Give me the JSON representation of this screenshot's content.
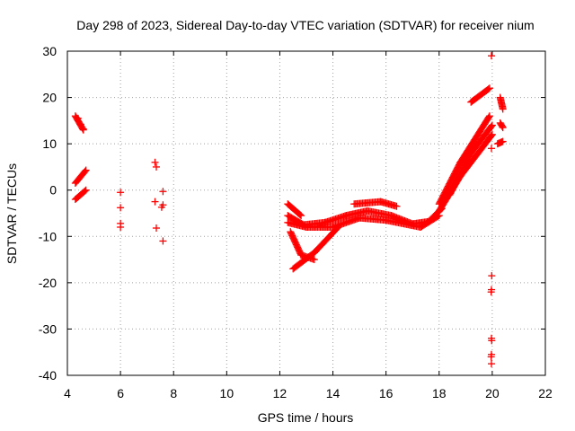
{
  "chart_data": {
    "type": "scatter",
    "title": "Day 298 of 2023, Sidereal Day-to-day VTEC variation (SDTVAR) for receiver nium",
    "xlabel": "GPS time / hours",
    "ylabel": "SDTVAR / TECUs",
    "xlim": [
      4,
      22
    ],
    "ylim": [
      -40,
      30
    ],
    "xticks": [
      4,
      6,
      8,
      10,
      12,
      14,
      16,
      18,
      20,
      22
    ],
    "yticks": [
      30,
      20,
      10,
      0,
      -10,
      -20,
      -30,
      -40
    ],
    "xtick_labels": [
      "4",
      "6",
      "8",
      "10",
      "12",
      "14",
      "16",
      "18",
      "20",
      "22"
    ],
    "ytick_labels": [
      "30",
      "20",
      "10",
      "0",
      "-10",
      "-20",
      "-30",
      "-40"
    ],
    "grid": true,
    "legend": "none",
    "marker": "plus",
    "color": "#ff0000",
    "series": [
      {
        "name": "segments",
        "segments": [
          [
            4.3,
            16.0,
            4.6,
            13.0
          ],
          [
            4.3,
            1.5,
            4.7,
            4.3
          ],
          [
            4.3,
            -2.0,
            4.7,
            0.0
          ],
          [
            12.3,
            -5.5,
            12.9,
            -7.5
          ],
          [
            12.9,
            -7.5,
            13.7,
            -7.0
          ],
          [
            13.7,
            -7.0,
            14.5,
            -5.5
          ],
          [
            14.5,
            -5.5,
            15.3,
            -4.5
          ],
          [
            15.3,
            -4.5,
            16.2,
            -5.5
          ],
          [
            16.2,
            -5.5,
            17.0,
            -7.3
          ],
          [
            17.0,
            -7.3,
            17.6,
            -6.8
          ],
          [
            17.6,
            -6.8,
            18.1,
            -4.0
          ],
          [
            12.3,
            -7.0,
            13.0,
            -8.0
          ],
          [
            13.0,
            -8.0,
            14.0,
            -8.0
          ],
          [
            14.0,
            -8.0,
            15.0,
            -6.0
          ],
          [
            15.0,
            -6.0,
            16.0,
            -6.5
          ],
          [
            16.0,
            -6.5,
            17.3,
            -8.0
          ],
          [
            17.3,
            -8.0,
            18.0,
            -5.5
          ],
          [
            12.4,
            -9.0,
            12.8,
            -14.0
          ],
          [
            12.8,
            -14.0,
            13.3,
            -15.0
          ],
          [
            12.5,
            -17.0,
            13.3,
            -13.5
          ],
          [
            13.3,
            -13.5,
            14.2,
            -8.0
          ],
          [
            12.3,
            -3.0,
            12.8,
            -5.5
          ],
          [
            14.8,
            -3.0,
            15.8,
            -2.5
          ],
          [
            15.8,
            -2.5,
            16.4,
            -3.5
          ],
          [
            18.0,
            -4.5,
            18.8,
            3.0
          ],
          [
            18.8,
            3.0,
            20.0,
            12.0
          ],
          [
            18.0,
            -3.0,
            18.8,
            6.0
          ],
          [
            18.8,
            6.0,
            19.9,
            16.0
          ],
          [
            18.4,
            -1.0,
            19.2,
            8.0
          ],
          [
            19.2,
            8.0,
            20.0,
            14.0
          ],
          [
            19.2,
            19.0,
            19.9,
            22.0
          ],
          [
            20.3,
            20.0,
            20.4,
            17.5
          ],
          [
            20.3,
            14.5,
            20.4,
            13.5
          ],
          [
            20.2,
            10.0,
            20.4,
            10.5
          ]
        ]
      },
      {
        "name": "points",
        "points": [
          [
            4.4,
            15.5
          ],
          [
            4.5,
            14.2
          ],
          [
            4.6,
            13.2
          ],
          [
            6.0,
            -0.5
          ],
          [
            6.0,
            -3.8
          ],
          [
            6.0,
            -7.2
          ],
          [
            6.0,
            -8.0
          ],
          [
            7.3,
            6.0
          ],
          [
            7.35,
            5.0
          ],
          [
            7.3,
            -2.5
          ],
          [
            7.35,
            -8.2
          ],
          [
            7.6,
            -0.3
          ],
          [
            7.6,
            -3.2
          ],
          [
            7.55,
            -3.7
          ],
          [
            7.6,
            -11.0
          ],
          [
            19.97,
            29.0
          ],
          [
            19.97,
            9.0
          ],
          [
            19.98,
            -18.5
          ],
          [
            19.97,
            -21.5
          ],
          [
            19.96,
            -22.0
          ],
          [
            19.97,
            -32.0
          ],
          [
            19.98,
            -32.5
          ],
          [
            19.97,
            -35.5
          ],
          [
            19.96,
            -36.0
          ],
          [
            19.97,
            -37.5
          ]
        ]
      }
    ]
  }
}
